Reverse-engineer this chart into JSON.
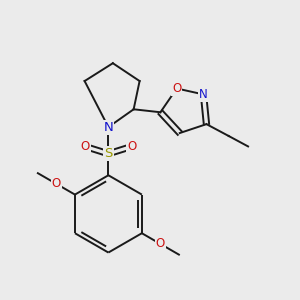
{
  "background_color": "#ebebeb",
  "bond_color": "#1a1a1a",
  "N_color": "#1414cc",
  "O_color": "#cc1414",
  "S_color": "#999900",
  "figsize": [
    3.0,
    3.0
  ],
  "dpi": 100,
  "xlim": [
    0,
    10
  ],
  "ylim": [
    0,
    10
  ]
}
